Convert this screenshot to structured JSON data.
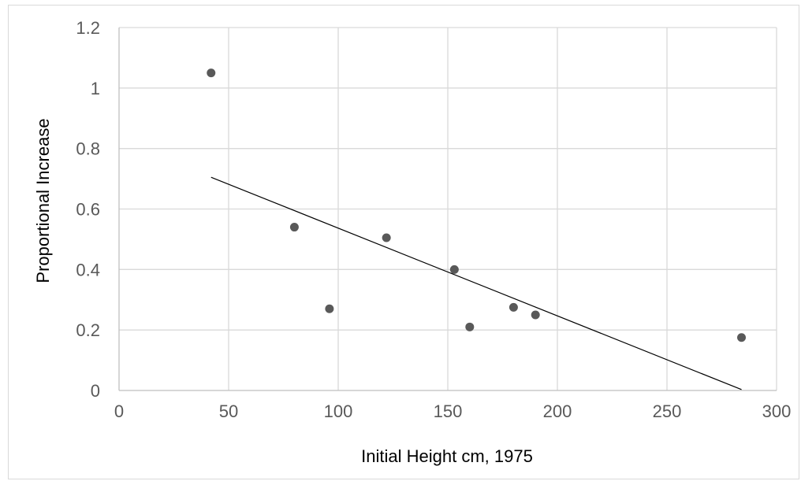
{
  "chart_data": {
    "type": "scatter",
    "title": "",
    "xlabel": "Initial Height cm, 1975",
    "ylabel": "Proportional Increase",
    "xlim": [
      0,
      300
    ],
    "ylim": [
      0,
      1.2
    ],
    "x_ticks": [
      "0",
      "50",
      "100",
      "150",
      "200",
      "250",
      "300"
    ],
    "y_ticks": [
      "0",
      "0.2",
      "0.4",
      "0.6",
      "0.8",
      "1",
      "1.2"
    ],
    "grid": true,
    "legend": "none",
    "series": [
      {
        "color": "#595959",
        "points": [
          {
            "x": 42,
            "y": 1.05
          },
          {
            "x": 80,
            "y": 0.54
          },
          {
            "x": 96,
            "y": 0.27
          },
          {
            "x": 122,
            "y": 0.505
          },
          {
            "x": 153,
            "y": 0.4
          },
          {
            "x": 160,
            "y": 0.21
          },
          {
            "x": 180,
            "y": 0.275
          },
          {
            "x": 190,
            "y": 0.25
          },
          {
            "x": 284,
            "y": 0.175
          }
        ]
      }
    ],
    "trendline": {
      "type": "linear",
      "color": "#000000",
      "points": [
        {
          "x": 42,
          "y": 0.705
        },
        {
          "x": 284,
          "y": 0.003
        }
      ]
    }
  }
}
